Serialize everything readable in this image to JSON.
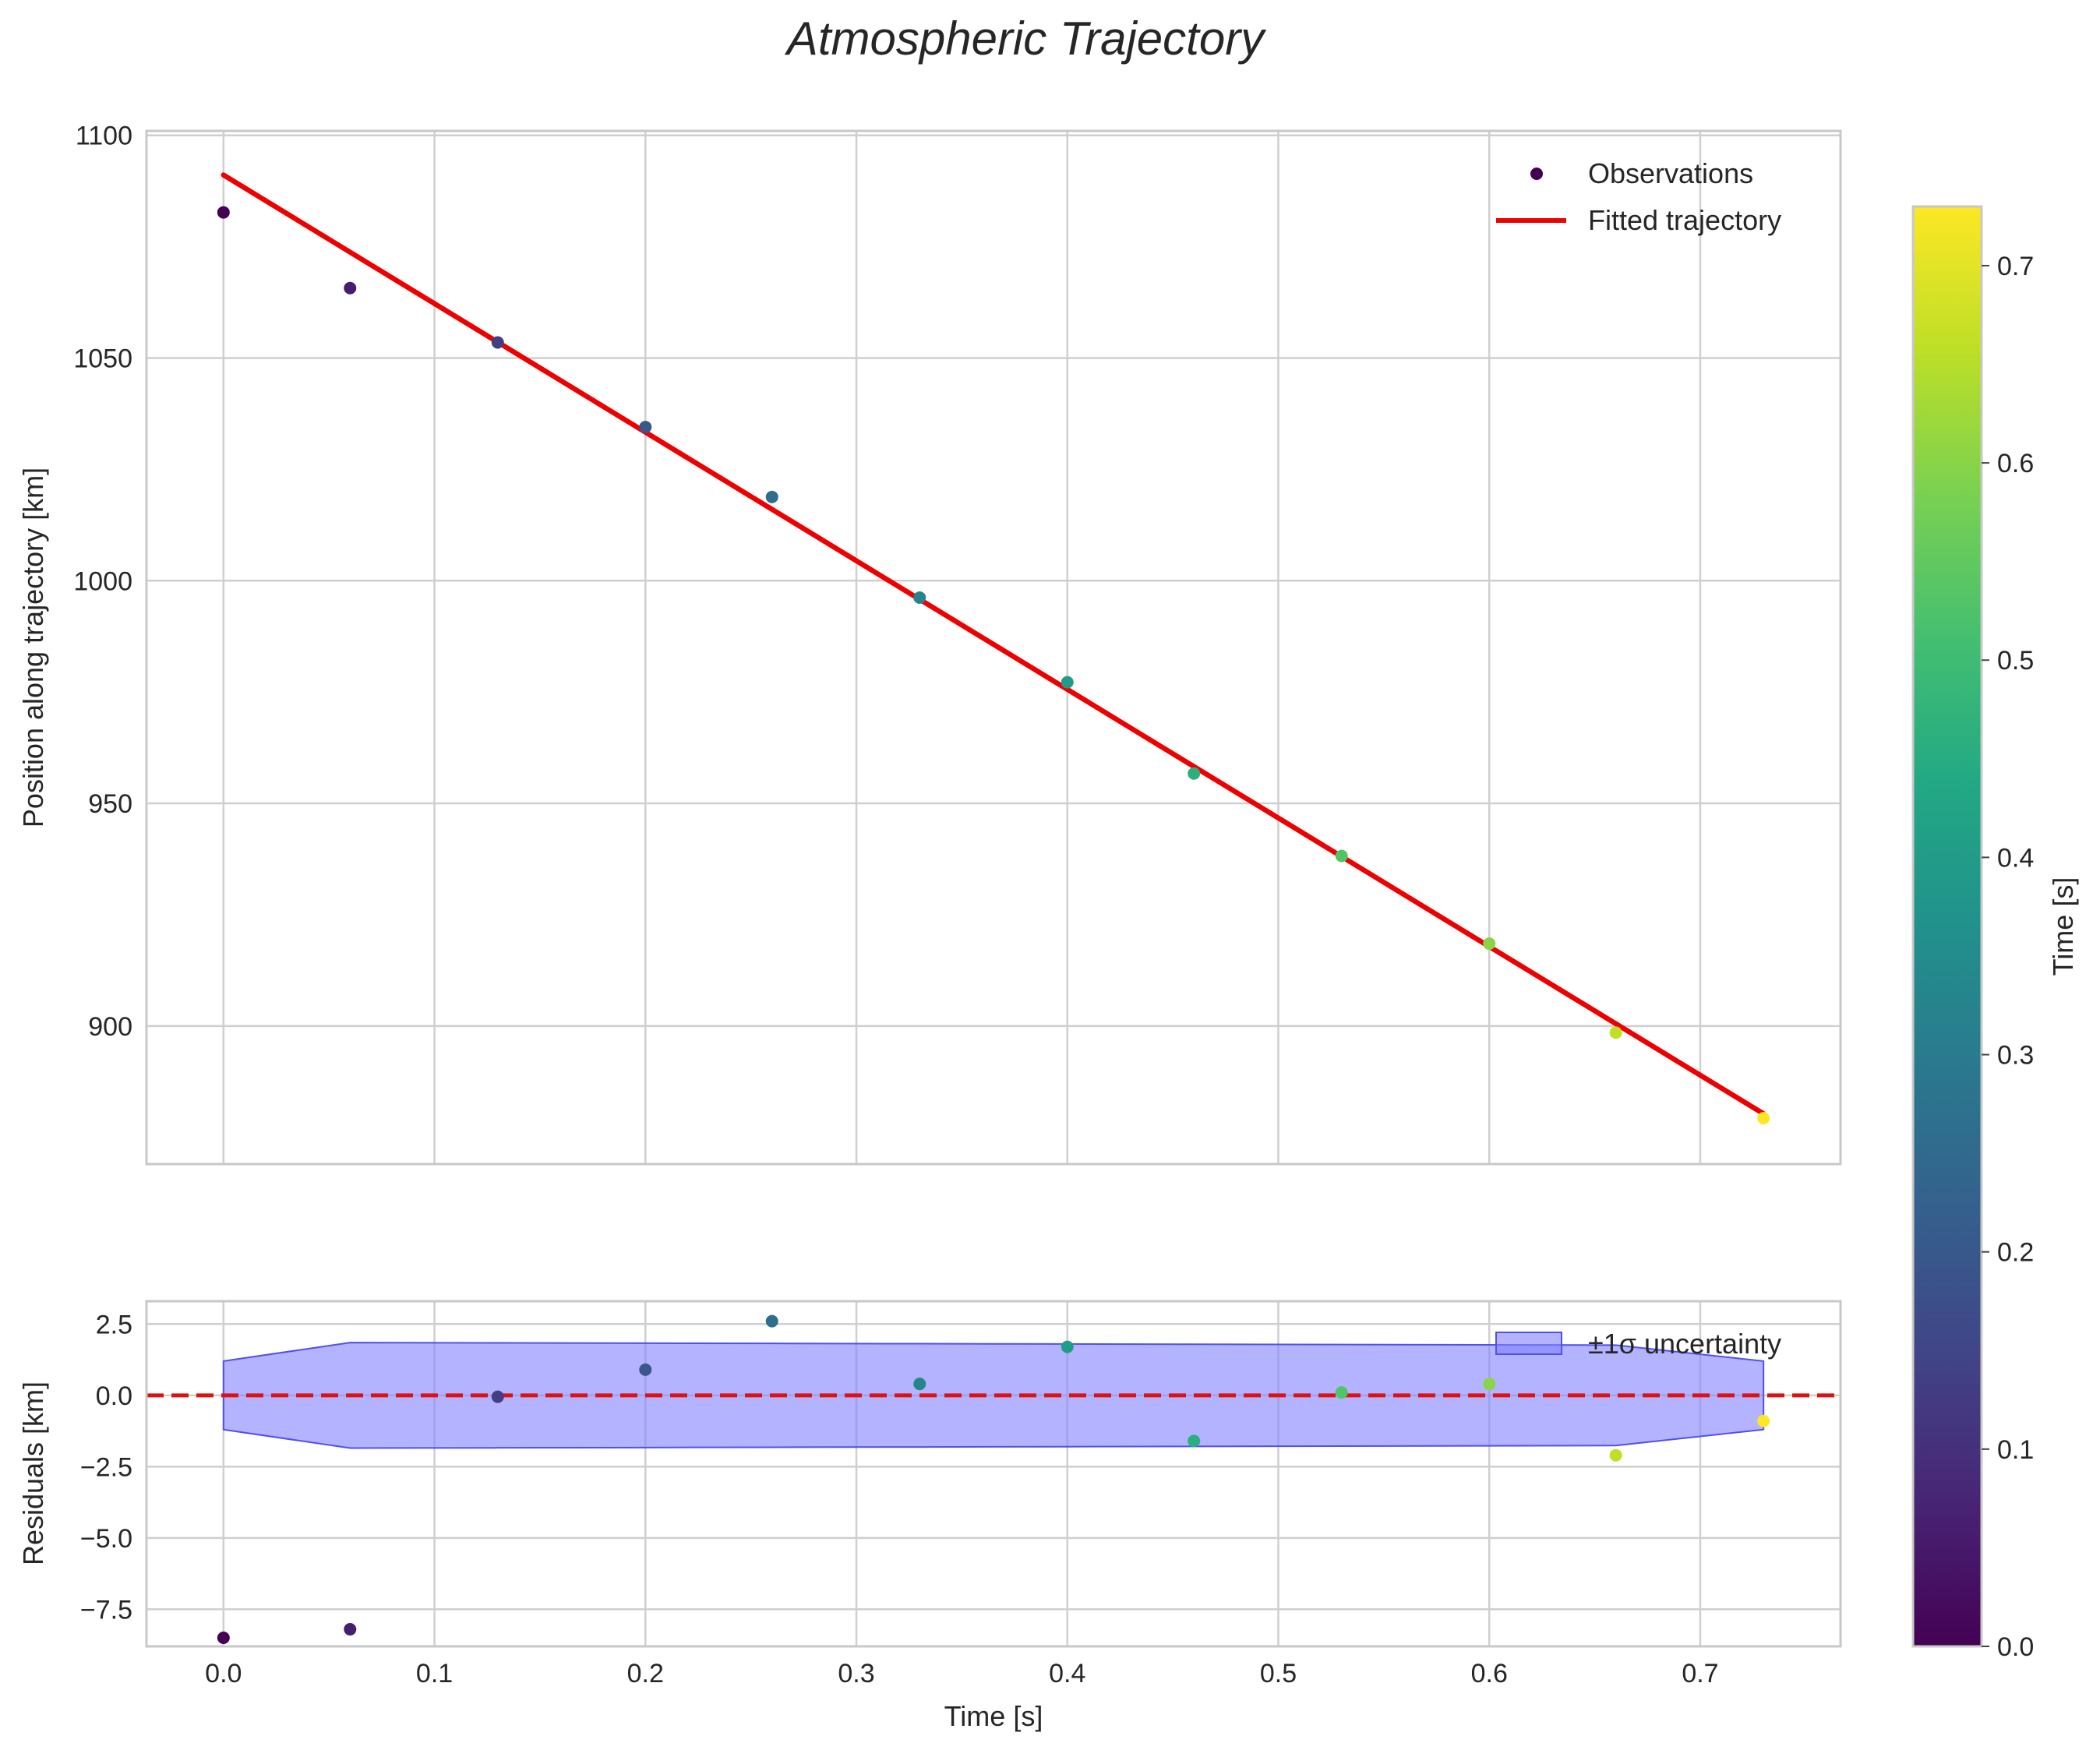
{
  "title": "Atmospheric Trajectory",
  "colors": {
    "fit_line": "#ee0000",
    "zero_line": "#dd1111",
    "band_fill": "#8080ff",
    "band_edge": "#5050ee",
    "grid": "#cfcfcf",
    "spine": "#c8c8c8"
  },
  "chart_data": [
    {
      "type": "scatter",
      "panel": "top",
      "title": "Atmospheric Trajectory",
      "xlabel": "",
      "ylabel": "Position along trajectory [km]",
      "xlim": [
        -0.0365,
        0.7665
      ],
      "ylim": [
        869,
        1101
      ],
      "xticks": [
        0.0,
        0.1,
        0.2,
        0.3,
        0.4,
        0.5,
        0.6,
        0.7
      ],
      "yticks": [
        900,
        950,
        1000,
        1050,
        1100
      ],
      "ytick_labels": [
        "900",
        "950",
        "1000",
        "1050",
        "1100"
      ],
      "grid": true,
      "legend_location": "top-right",
      "series": [
        {
          "name": "Observations",
          "kind": "scatter",
          "color_by": "time",
          "x": [
            0.0,
            0.06,
            0.13,
            0.2,
            0.26,
            0.33,
            0.4,
            0.46,
            0.53,
            0.6,
            0.66,
            0.73
          ],
          "y": [
            1082.7,
            1065.7,
            1053.5,
            1034.5,
            1018.8,
            996.2,
            977.2,
            956.7,
            938.2,
            918.5,
            898.5,
            879.3
          ]
        },
        {
          "name": "Fitted trajectory",
          "kind": "line",
          "x": [
            0.0,
            0.73
          ],
          "y": [
            1091.1,
            880.3
          ]
        }
      ]
    },
    {
      "type": "scatter",
      "panel": "bottom",
      "xlabel": "Time [s]",
      "ylabel": "Residuals [km]",
      "xlim": [
        -0.0365,
        0.7665
      ],
      "ylim": [
        -8.8,
        3.3
      ],
      "xticks": [
        0.0,
        0.1,
        0.2,
        0.3,
        0.4,
        0.5,
        0.6,
        0.7
      ],
      "xtick_labels": [
        "0.0",
        "0.1",
        "0.2",
        "0.3",
        "0.4",
        "0.5",
        "0.6",
        "0.7"
      ],
      "yticks": [
        -7.5,
        -5.0,
        -2.5,
        0.0,
        2.5
      ],
      "ytick_labels": [
        "−7.5",
        "−5.0",
        "−2.5",
        "0.0",
        "2.5"
      ],
      "grid": true,
      "legend_location": "top-right",
      "series": [
        {
          "name": "Residuals",
          "kind": "scatter",
          "color_by": "time",
          "x": [
            0.0,
            0.06,
            0.13,
            0.2,
            0.26,
            0.33,
            0.4,
            0.46,
            0.53,
            0.6,
            0.66,
            0.73
          ],
          "y": [
            -8.5,
            -8.2,
            -0.05,
            0.9,
            2.6,
            0.4,
            1.7,
            -1.6,
            0.1,
            0.4,
            -2.1,
            -0.9
          ]
        },
        {
          "name": "±1σ uncertainty",
          "kind": "band",
          "x": [
            0.0,
            0.06,
            0.13,
            0.2,
            0.26,
            0.33,
            0.4,
            0.46,
            0.53,
            0.6,
            0.66,
            0.73
          ],
          "upper": [
            1.2,
            1.85,
            1.84,
            1.83,
            1.82,
            1.81,
            1.8,
            1.79,
            1.78,
            1.77,
            1.76,
            1.2
          ],
          "lower": [
            -1.2,
            -1.85,
            -1.84,
            -1.83,
            -1.82,
            -1.81,
            -1.8,
            -1.79,
            -1.78,
            -1.77,
            -1.76,
            -1.2
          ]
        },
        {
          "name": "zero",
          "kind": "hline",
          "y": 0.0
        }
      ]
    },
    {
      "type": "colorbar",
      "label": "Time [s]",
      "colormap": "viridis",
      "range": [
        0.0,
        0.73
      ],
      "ticks": [
        0.0,
        0.1,
        0.2,
        0.3,
        0.4,
        0.5,
        0.6,
        0.7
      ],
      "tick_labels": [
        "0.0",
        "0.1",
        "0.2",
        "0.3",
        "0.4",
        "0.5",
        "0.6",
        "0.7"
      ]
    }
  ]
}
